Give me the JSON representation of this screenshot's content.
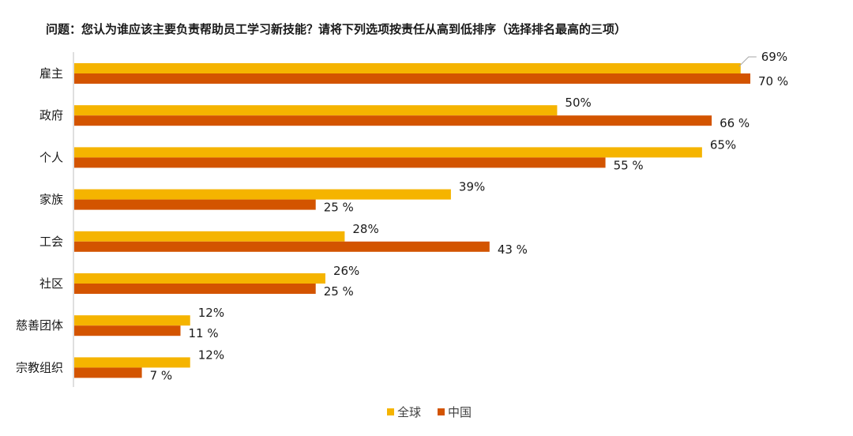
{
  "chart_data": {
    "type": "bar",
    "orientation": "horizontal",
    "title": "问题：您认为谁应该主要负责帮助员工学习新技能？请将下列选项按责任从高到低排序（选择排名最高的三项）",
    "categories": [
      "雇主",
      "政府",
      "个人",
      "家族",
      "工会",
      "社区",
      "慈善团体",
      "宗教组织"
    ],
    "series": [
      {
        "name": "全球",
        "color": "#F5B400",
        "values": [
          69,
          50,
          65,
          39,
          28,
          26,
          12,
          12
        ],
        "labels": [
          "69%",
          "50%",
          "65%",
          "39%",
          "28%",
          "26%",
          "12%",
          "12%"
        ]
      },
      {
        "name": "中国",
        "color": "#D35400",
        "values": [
          70,
          66,
          55,
          25,
          43,
          25,
          11,
          7
        ],
        "labels": [
          "70 %",
          "66 %",
          "55 %",
          "25 %",
          "43 %",
          "25 %",
          "11 %",
          "7 %"
        ]
      }
    ],
    "xlim": [
      0,
      70
    ],
    "grid": false,
    "legend_position": "bottom"
  }
}
